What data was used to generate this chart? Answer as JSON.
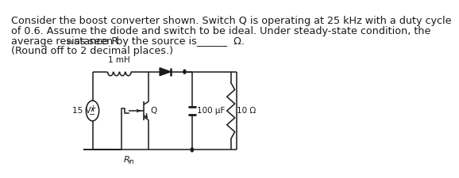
{
  "line1": "Consider the boost converter shown. Switch Q is operating at 25 kHz with a duty cycle",
  "line2": "of 0.6. Assume the diode and switch to be ideal. Under steady-state condition, the",
  "line3a": "average resistance R",
  "line3b": "in",
  "line3c": " as seen by the source is______  Ω.",
  "line4": "(Round off to 2 decimal places.)",
  "label_1mH": "1 mH",
  "label_15V": "15 V",
  "label_Q": "Q",
  "label_100uF": "100 μF",
  "label_10ohm": "10 Ω",
  "label_Rin": "R",
  "label_Rin_sub": "in",
  "bg_color": "#ffffff",
  "line_color": "#1a1a1a",
  "font_size_body": 9.2,
  "font_size_label": 7.5
}
